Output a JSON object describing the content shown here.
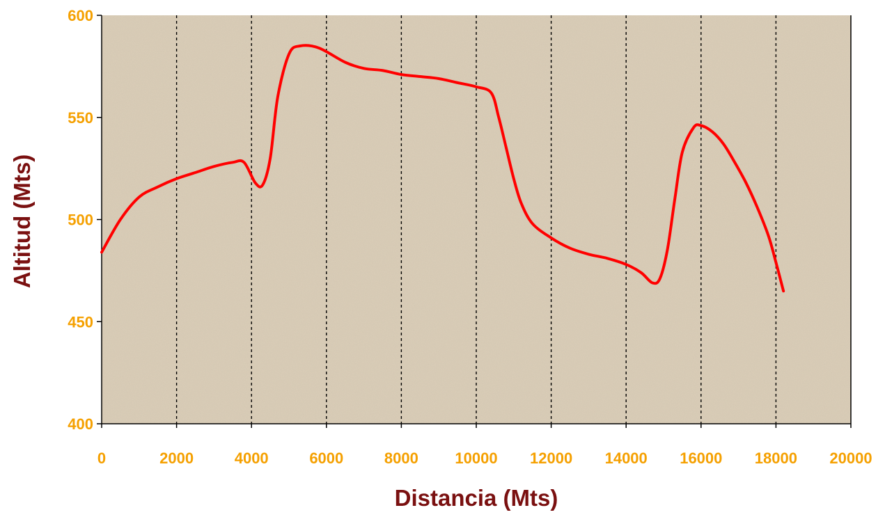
{
  "colors": {
    "tick_label": "#f5a000",
    "axis_title": "#7a1010",
    "series_line": "#ff0000",
    "plot_background": "#d9ccb6",
    "grid": "#000000",
    "axis": "#000000"
  },
  "chart_data": {
    "type": "line",
    "title": "",
    "xlabel": "Distancia (Mts)",
    "ylabel": "Altitud (Mts)",
    "xlim": [
      0,
      20000
    ],
    "ylim": [
      400,
      600
    ],
    "x_ticks": [
      0,
      2000,
      4000,
      6000,
      8000,
      10000,
      12000,
      14000,
      16000,
      18000,
      20000
    ],
    "y_ticks": [
      400,
      450,
      500,
      550,
      600
    ],
    "x_tick_labels": [
      "0",
      "2000",
      "4000",
      "6000",
      "8000",
      "10000",
      "12000",
      "14000",
      "16000",
      "18000",
      "20000"
    ],
    "y_tick_labels": [
      "400",
      "450",
      "500",
      "550",
      "600"
    ],
    "grid": {
      "vertical": true,
      "horizontal": false,
      "style": "dashed"
    },
    "legend": "none",
    "series": [
      {
        "x": [
          0,
          500,
          1000,
          1500,
          2000,
          2500,
          3000,
          3500,
          3800,
          4100,
          4300,
          4500,
          4700,
          5000,
          5300,
          5800,
          6500,
          7000,
          7500,
          8000,
          8500,
          9000,
          9500,
          10000,
          10400,
          10600,
          10800,
          11000,
          11200,
          11500,
          12000,
          12500,
          13000,
          13500,
          14000,
          14400,
          14700,
          14900,
          15100,
          15300,
          15500,
          15800,
          16000,
          16300,
          16600,
          16900,
          17200,
          17500,
          17800,
          18000,
          18200
        ],
        "y": [
          484,
          500,
          511,
          516,
          520,
          523,
          526,
          528,
          528,
          518,
          517,
          530,
          560,
          581,
          585,
          584,
          577,
          574,
          573,
          571,
          570,
          569,
          567,
          565,
          562,
          550,
          535,
          520,
          508,
          498,
          491,
          486,
          483,
          481,
          478,
          474,
          469,
          471,
          485,
          510,
          533,
          545,
          546,
          543,
          537,
          528,
          518,
          506,
          492,
          479,
          465
        ]
      }
    ]
  }
}
